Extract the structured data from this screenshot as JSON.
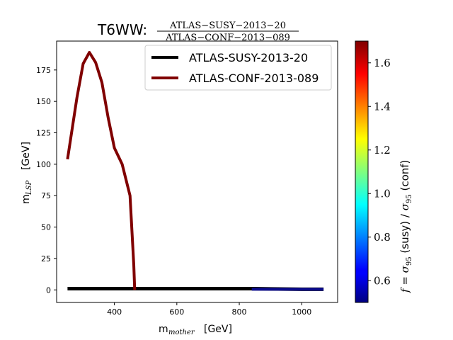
{
  "chart_data": {
    "type": "line",
    "title": {
      "prefix": "T6WW:",
      "numerator": "ATLAS−SUSY−2013−20",
      "denominator": "ATLAS−CONF−2013−089"
    },
    "xlabel": {
      "main": "m",
      "sub": "mother",
      "unit": "[GeV]"
    },
    "ylabel": {
      "main": "m",
      "sub": "LSP",
      "unit": "[GeV]"
    },
    "xlim": [
      215,
      1115
    ],
    "ylim": [
      -10,
      198
    ],
    "xticks": [
      400,
      600,
      800,
      1000
    ],
    "yticks": [
      0,
      25,
      50,
      75,
      100,
      125,
      150,
      175
    ],
    "legend": {
      "placement": "top-right",
      "entries": [
        {
          "label": "ATLAS-SUSY-2013-20",
          "color": "#000000"
        },
        {
          "label": "ATLAS-CONF-2013-089",
          "color": "#800000"
        }
      ]
    },
    "series": [
      {
        "name": "ATLAS-SUSY-2013-20",
        "color": "#000000",
        "x": [
          250,
          400,
          600,
          800,
          840,
          1000,
          1070
        ],
        "y": [
          1,
          1,
          1,
          1,
          1,
          0.5,
          0.5
        ],
        "ratio_segment": {
          "x": [
            840,
            1070
          ],
          "y": [
            0.5,
            0.5
          ],
          "color": "#0a0a8c"
        }
      },
      {
        "name": "ATLAS-CONF-2013-089",
        "color": "#800000",
        "x": [
          250,
          280,
          300,
          320,
          340,
          360,
          380,
          400,
          425,
          450,
          462,
          465,
          465
        ],
        "y": [
          104,
          153,
          180,
          189,
          181,
          165,
          137,
          113,
          100,
          75,
          20,
          0,
          0
        ]
      }
    ],
    "colorbar": {
      "label": "f = σ₉₅ (susy) / σ₉₅ (conf)",
      "label_parts": [
        "f = ",
        "σ",
        "95",
        " (susy) / ",
        "σ",
        "95",
        " (conf)"
      ],
      "range": [
        0.5,
        1.7
      ],
      "ticks": [
        0.6,
        0.8,
        1.0,
        1.2,
        1.4,
        1.6
      ],
      "tick_labels": [
        "0.6",
        "0.8",
        "1.0",
        "1.2",
        "1.4",
        "1.6"
      ],
      "colormap": "jet"
    }
  }
}
